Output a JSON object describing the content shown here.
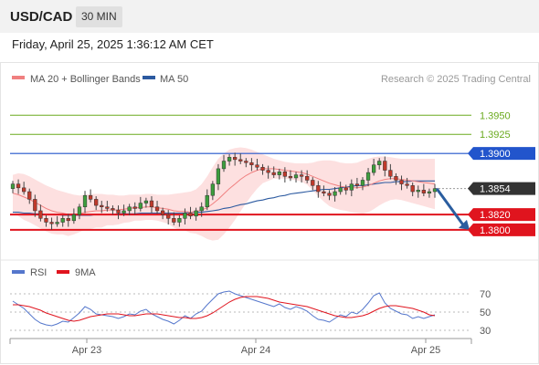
{
  "header": {
    "symbol": "USD/CAD",
    "timeframe": "30 MIN"
  },
  "timestamp": "Friday, April 25, 2025 1:36:12 AM CET",
  "legend": {
    "ma20": "MA 20 + Bollinger Bands",
    "ma50": "MA 50",
    "credit": "Research © 2025 Trading Central"
  },
  "rsi_legend": {
    "rsi": "RSI",
    "ma": "9MA"
  },
  "colors": {
    "bands": "#fcd6d6",
    "ma20": "#f08080",
    "ma50": "#2c5aa0",
    "green": "#6aaa1e",
    "red": "#e0141e",
    "blue": "#2255cc",
    "up": "#3d9e3d",
    "down": "#c0392b"
  },
  "chart_data": [
    {
      "type": "candlestick",
      "ylim": [
        1.377,
        1.3985
      ],
      "x_labels": [
        "Apr 23",
        "Apr 24",
        "Apr 25"
      ],
      "levels": [
        {
          "label": "1.3950",
          "value": 1.395,
          "kind": "resistance-green"
        },
        {
          "label": "1.3925",
          "value": 1.3925,
          "kind": "resistance-green"
        },
        {
          "label": "1.3900",
          "value": 1.39,
          "kind": "resistance-blue"
        },
        {
          "label": "1.3854",
          "value": 1.3854,
          "kind": "current"
        },
        {
          "label": "1.3820",
          "value": 1.382,
          "kind": "support-red"
        },
        {
          "label": "1.3800",
          "value": 1.38,
          "kind": "support-red"
        }
      ],
      "arrow": {
        "from": 1.3854,
        "to": 1.38
      },
      "close": [
        1.386,
        1.3855,
        1.385,
        1.384,
        1.3825,
        1.3815,
        1.381,
        1.3808,
        1.381,
        1.3815,
        1.3812,
        1.382,
        1.383,
        1.3845,
        1.384,
        1.3832,
        1.383,
        1.3828,
        1.3826,
        1.3822,
        1.3825,
        1.383,
        1.3828,
        1.3835,
        1.3838,
        1.383,
        1.3825,
        1.382,
        1.3815,
        1.381,
        1.3815,
        1.3822,
        1.3818,
        1.3825,
        1.383,
        1.3845,
        1.386,
        1.388,
        1.389,
        1.3895,
        1.3892,
        1.389,
        1.3888,
        1.3885,
        1.3882,
        1.3878,
        1.3875,
        1.3872,
        1.3876,
        1.387,
        1.3868,
        1.3872,
        1.387,
        1.3865,
        1.3858,
        1.385,
        1.3848,
        1.3845,
        1.385,
        1.3855,
        1.3852,
        1.386,
        1.3858,
        1.3865,
        1.3875,
        1.3885,
        1.389,
        1.3878,
        1.387,
        1.3865,
        1.386,
        1.3858,
        1.385,
        1.3852,
        1.3848,
        1.385,
        1.3854
      ],
      "ma20": [
        1.3848,
        1.3846,
        1.3843,
        1.384,
        1.3836,
        1.3832,
        1.3828,
        1.3825,
        1.3823,
        1.3822,
        1.382,
        1.382,
        1.3821,
        1.3823,
        1.3824,
        1.3825,
        1.3825,
        1.3826,
        1.3826,
        1.3826,
        1.3827,
        1.3828,
        1.3829,
        1.3829,
        1.383,
        1.383,
        1.3829,
        1.3828,
        1.3827,
        1.3825,
        1.3824,
        1.3824,
        1.3823,
        1.3824,
        1.3826,
        1.3829,
        1.3834,
        1.384,
        1.3847,
        1.3854,
        1.386,
        1.3866,
        1.3871,
        1.3875,
        1.3878,
        1.388,
        1.388,
        1.388,
        1.3879,
        1.3878,
        1.3877,
        1.3876,
        1.3875,
        1.3873,
        1.387,
        1.3867,
        1.3864,
        1.3861,
        1.3859,
        1.3857,
        1.3856,
        1.3855,
        1.3855,
        1.3856,
        1.3858,
        1.3861,
        1.3864,
        1.3866,
        1.3867,
        1.3867,
        1.3866,
        1.3865,
        1.3864,
        1.3863,
        1.3862,
        1.3861,
        1.386
      ],
      "upper": [
        1.3872,
        1.3874,
        1.3873,
        1.387,
        1.3866,
        1.3862,
        1.3858,
        1.3855,
        1.3852,
        1.385,
        1.3848,
        1.3846,
        1.3845,
        1.3846,
        1.3847,
        1.3847,
        1.3847,
        1.3846,
        1.3846,
        1.3845,
        1.3845,
        1.3846,
        1.3846,
        1.3846,
        1.3847,
        1.3847,
        1.3846,
        1.3846,
        1.3846,
        1.3847,
        1.3848,
        1.3849,
        1.385,
        1.3853,
        1.386,
        1.387,
        1.3882,
        1.3893,
        1.39,
        1.3905,
        1.3907,
        1.3908,
        1.3907,
        1.3905,
        1.3902,
        1.3899,
        1.3896,
        1.3893,
        1.3891,
        1.3889,
        1.3888,
        1.3887,
        1.3887,
        1.3887,
        1.3888,
        1.389,
        1.3891,
        1.3891,
        1.389,
        1.3888,
        1.3887,
        1.3887,
        1.3888,
        1.3891,
        1.3893,
        1.3895,
        1.3896,
        1.3896,
        1.3895,
        1.3894,
        1.3893,
        1.3893,
        1.3893,
        1.3893,
        1.3893,
        1.3893,
        1.3893
      ],
      "lower": [
        1.3824,
        1.3818,
        1.3813,
        1.381,
        1.3806,
        1.3802,
        1.3798,
        1.3795,
        1.3794,
        1.3794,
        1.3792,
        1.3794,
        1.3797,
        1.38,
        1.3801,
        1.3803,
        1.3803,
        1.3806,
        1.3806,
        1.3807,
        1.3809,
        1.381,
        1.3812,
        1.3812,
        1.3813,
        1.3813,
        1.3812,
        1.381,
        1.3808,
        1.3803,
        1.38,
        1.3799,
        1.3796,
        1.3795,
        1.3792,
        1.3788,
        1.3786,
        1.3787,
        1.3794,
        1.3803,
        1.3813,
        1.3824,
        1.3835,
        1.3845,
        1.3854,
        1.3861,
        1.3864,
        1.3867,
        1.3867,
        1.3867,
        1.3866,
        1.3865,
        1.3863,
        1.3859,
        1.3852,
        1.3844,
        1.3837,
        1.3831,
        1.3828,
        1.3826,
        1.3825,
        1.3823,
        1.3822,
        1.3821,
        1.3823,
        1.3827,
        1.3832,
        1.3836,
        1.3839,
        1.384,
        1.3839,
        1.3837,
        1.3835,
        1.3833,
        1.3831,
        1.3829,
        1.3827
      ],
      "ma50": [
        1.3823,
        1.3823,
        1.3822,
        1.3822,
        1.3821,
        1.3821,
        1.382,
        1.382,
        1.382,
        1.3819,
        1.3819,
        1.3819,
        1.3819,
        1.3819,
        1.3819,
        1.382,
        1.382,
        1.382,
        1.382,
        1.3821,
        1.3821,
        1.3821,
        1.3821,
        1.3822,
        1.3822,
        1.3822,
        1.3822,
        1.3822,
        1.3822,
        1.3822,
        1.3822,
        1.3822,
        1.3823,
        1.3823,
        1.3823,
        1.3824,
        1.3825,
        1.3826,
        1.3828,
        1.3829,
        1.3831,
        1.3833,
        1.3834,
        1.3836,
        1.3838,
        1.3839,
        1.3841,
        1.3842,
        1.3844,
        1.3845,
        1.3847,
        1.3848,
        1.3849,
        1.385,
        1.3851,
        1.3852,
        1.3853,
        1.3853,
        1.3854,
        1.3855,
        1.3856,
        1.3857,
        1.3858,
        1.3858,
        1.3859,
        1.386,
        1.3861,
        1.3862,
        1.3862,
        1.3863,
        1.3863,
        1.3863,
        1.3864,
        1.3864,
        1.3864,
        1.3864,
        1.3864
      ]
    },
    {
      "type": "line",
      "ylim": [
        20,
        80
      ],
      "y_ticks": [
        70,
        50,
        30
      ],
      "series": [
        {
          "name": "RSI",
          "values": [
            62,
            58,
            54,
            48,
            42,
            38,
            36,
            35,
            37,
            40,
            39,
            44,
            49,
            56,
            53,
            48,
            47,
            46,
            45,
            43,
            45,
            48,
            47,
            51,
            53,
            48,
            45,
            42,
            40,
            37,
            41,
            46,
            43,
            48,
            51,
            58,
            64,
            70,
            72,
            73,
            70,
            68,
            66,
            64,
            62,
            60,
            58,
            56,
            59,
            55,
            53,
            56,
            54,
            51,
            46,
            42,
            41,
            39,
            43,
            47,
            45,
            50,
            48,
            53,
            60,
            68,
            71,
            60,
            54,
            51,
            48,
            47,
            43,
            45,
            43,
            45,
            47
          ]
        },
        {
          "name": "9MA",
          "values": [
            58,
            58,
            57,
            56,
            54,
            52,
            49,
            47,
            45,
            43,
            41,
            40,
            41,
            43,
            45,
            46,
            47,
            48,
            48,
            48,
            47,
            46,
            46,
            47,
            48,
            48,
            48,
            47,
            46,
            45,
            44,
            44,
            43,
            43,
            44,
            46,
            49,
            53,
            57,
            61,
            64,
            66,
            67,
            67,
            67,
            66,
            65,
            63,
            61,
            60,
            59,
            58,
            57,
            56,
            54,
            52,
            50,
            48,
            46,
            45,
            44,
            44,
            45,
            46,
            48,
            51,
            54,
            56,
            57,
            57,
            56,
            55,
            54,
            52,
            50,
            47,
            46
          ]
        }
      ]
    }
  ]
}
